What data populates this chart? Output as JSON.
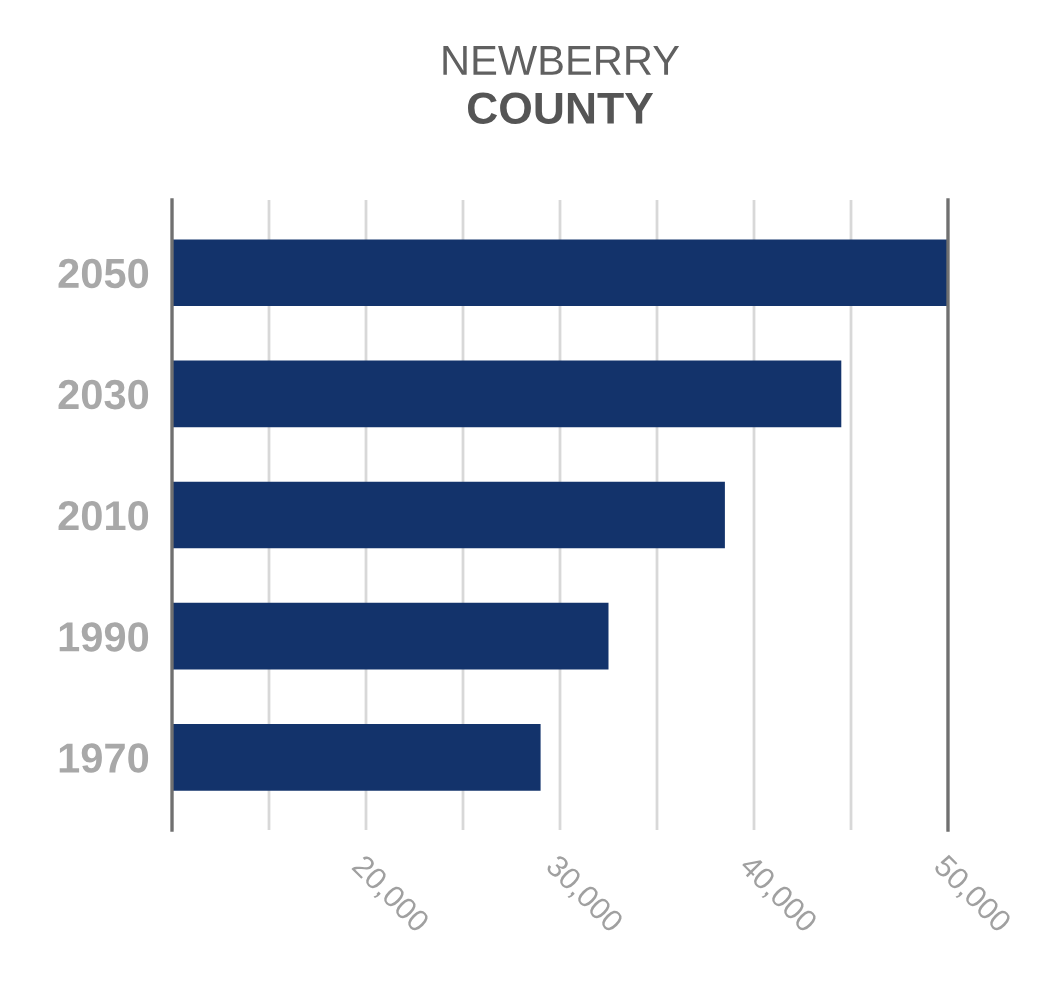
{
  "chart_data": {
    "type": "bar",
    "orientation": "horizontal",
    "title": "NEWBERRY",
    "subtitle": "COUNTY",
    "categories": [
      "2050",
      "2030",
      "2010",
      "1990",
      "1970"
    ],
    "values": [
      50000,
      44500,
      38500,
      32500,
      29000
    ],
    "color": "#13336b",
    "xlim": [
      10000,
      50000
    ],
    "xticks": [
      {
        "value": 10000,
        "label": null
      },
      {
        "value": 15000,
        "label": null
      },
      {
        "value": 20000,
        "label": "20,000"
      },
      {
        "value": 25000,
        "label": null
      },
      {
        "value": 30000,
        "label": "30,000"
      },
      {
        "value": 35000,
        "label": null
      },
      {
        "value": 40000,
        "label": "40,000"
      },
      {
        "value": 45000,
        "label": null
      },
      {
        "value": 50000,
        "label": "50,000"
      }
    ],
    "grid": "x"
  }
}
